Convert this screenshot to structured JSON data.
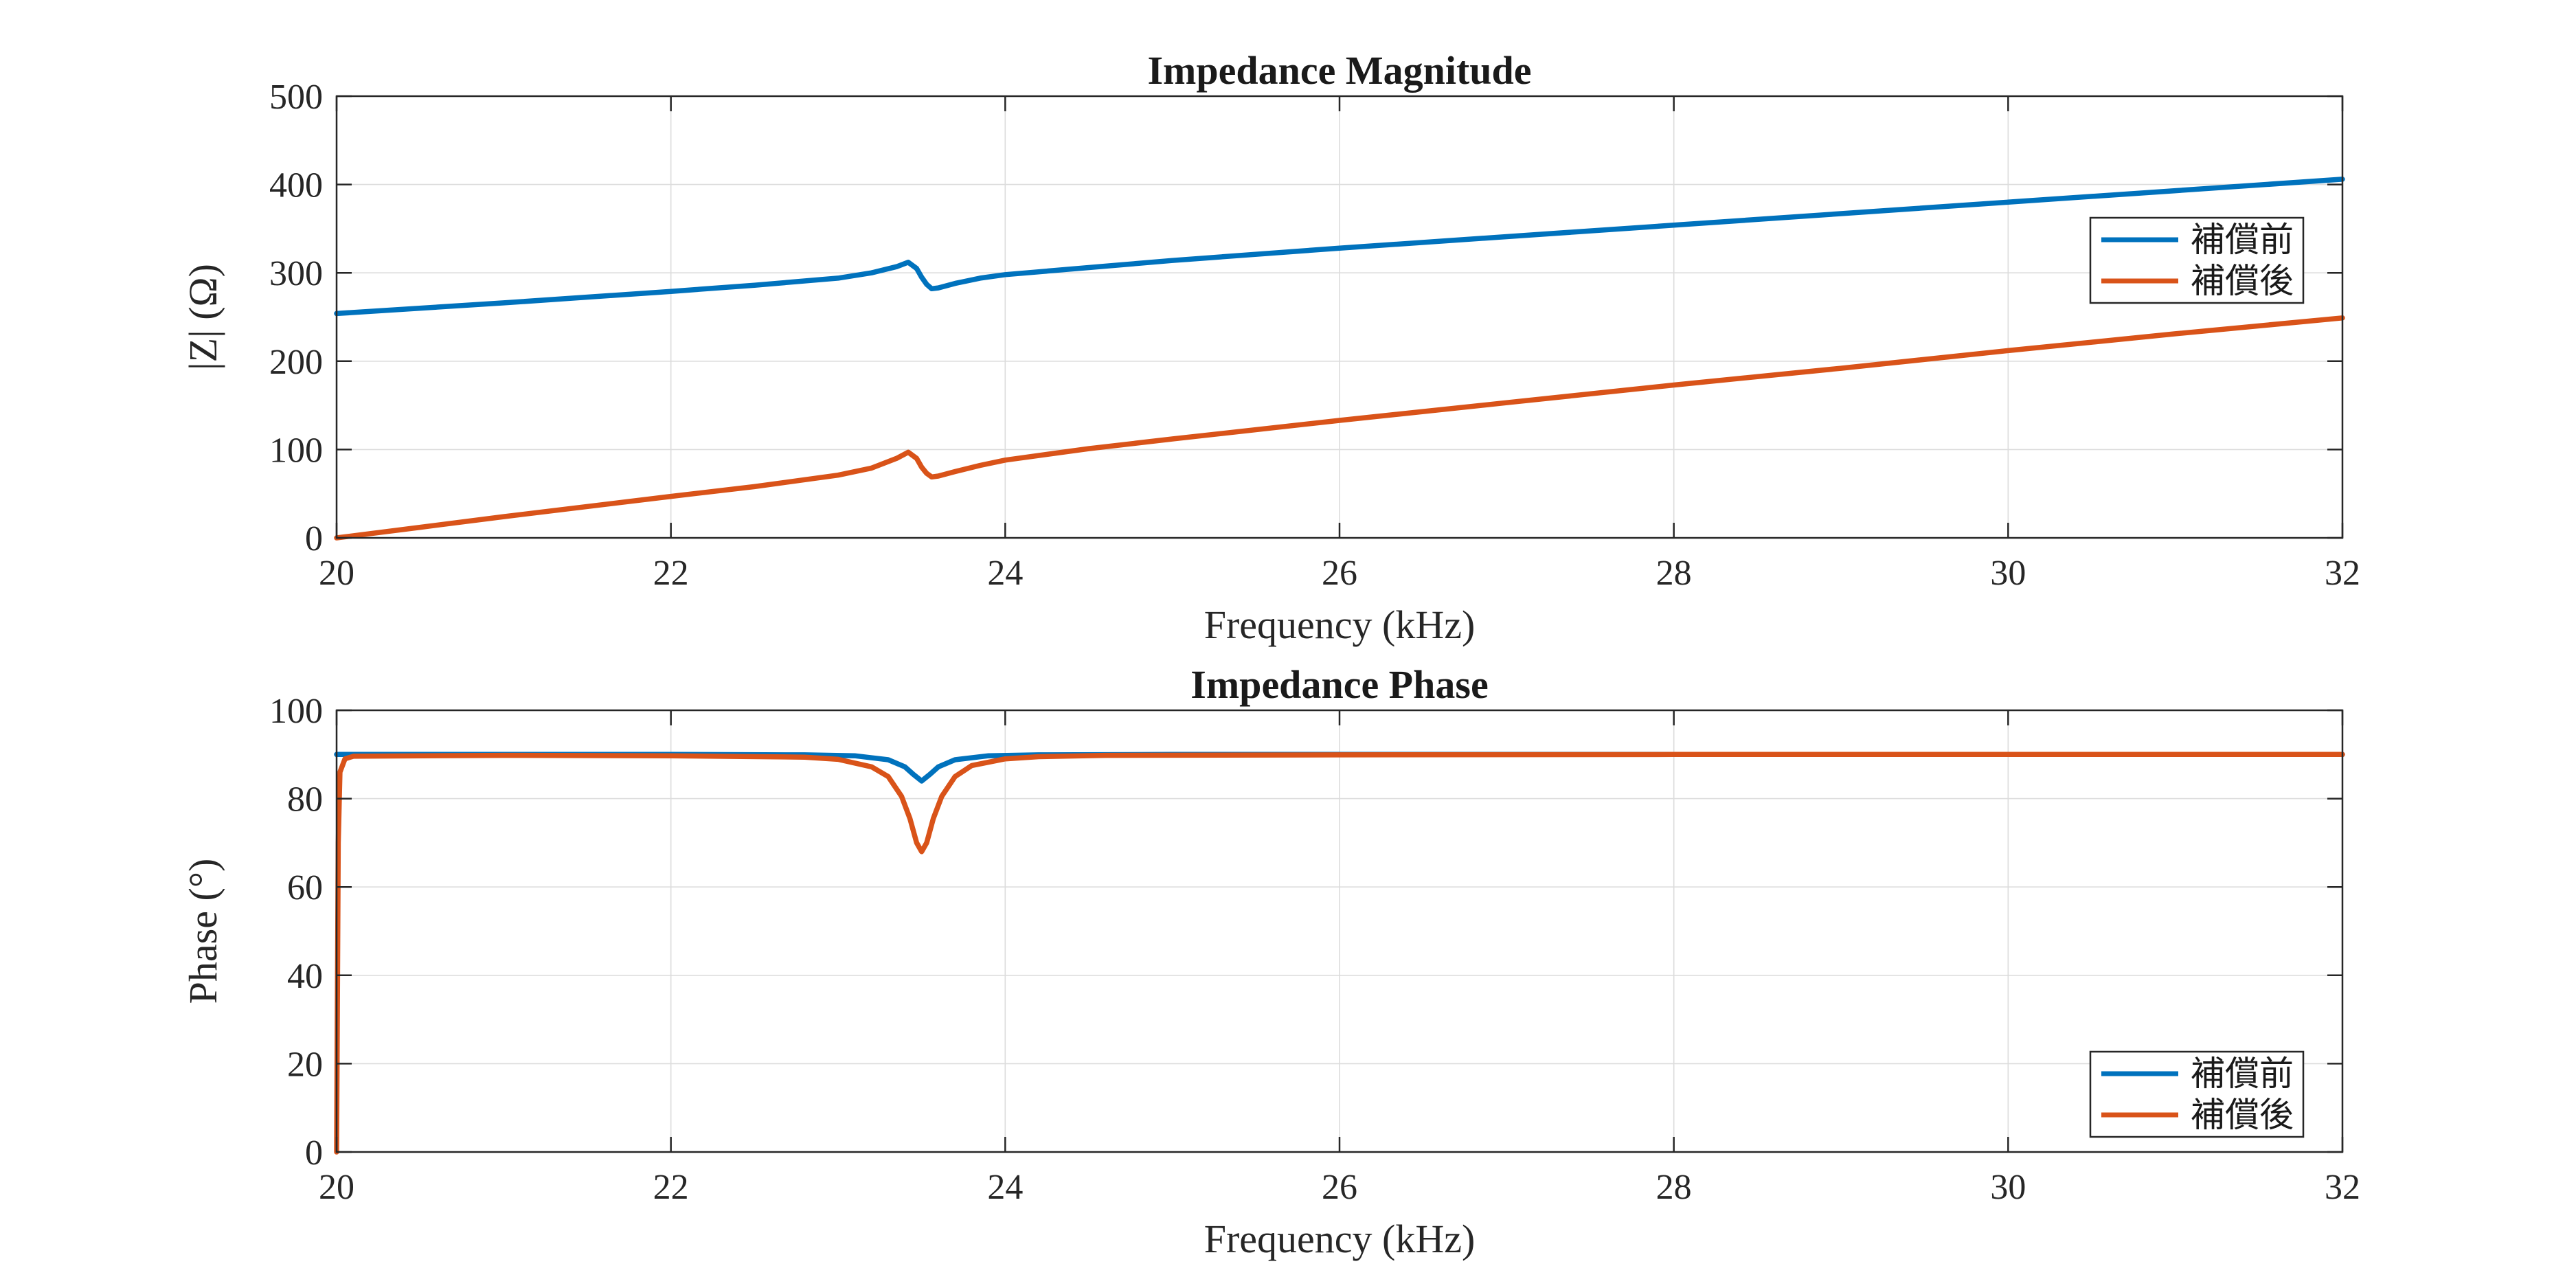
{
  "chart_data": [
    {
      "type": "line",
      "title": "Impedance Magnitude",
      "xlabel": "Frequency (kHz)",
      "ylabel": "|Z| (Ω)",
      "xlim": [
        20,
        32
      ],
      "ylim": [
        0,
        500
      ],
      "xticks": [
        20,
        22,
        24,
        26,
        28,
        30,
        32
      ],
      "yticks": [
        0,
        100,
        200,
        300,
        400,
        500
      ],
      "grid": true,
      "legend_position": "right",
      "series": [
        {
          "name": "補償前",
          "color": "#0072BD",
          "x": [
            20,
            21,
            22,
            22.5,
            23,
            23.2,
            23.35,
            23.42,
            23.47,
            23.5,
            23.53,
            23.56,
            23.6,
            23.7,
            23.85,
            24,
            24.5,
            25,
            26,
            27,
            28,
            29,
            30,
            31,
            32
          ],
          "y": [
            254,
            266,
            279,
            286,
            294,
            300,
            307,
            312,
            305,
            295,
            287,
            282,
            283,
            288,
            294,
            298,
            306,
            314,
            328,
            341,
            354,
            367,
            380,
            393,
            406
          ]
        },
        {
          "name": "補償後",
          "color": "#D95319",
          "x": [
            20,
            20.5,
            21,
            22,
            22.5,
            23,
            23.2,
            23.35,
            23.42,
            23.47,
            23.5,
            23.53,
            23.56,
            23.6,
            23.7,
            23.85,
            24,
            24.5,
            25,
            26,
            27,
            28,
            29,
            30,
            31,
            32
          ],
          "y": [
            0,
            12,
            24,
            47,
            58,
            71,
            79,
            90,
            97,
            90,
            80,
            73,
            69,
            70,
            75,
            82,
            88,
            101,
            112,
            133,
            153,
            173,
            192,
            212,
            231,
            249
          ]
        }
      ]
    },
    {
      "type": "line",
      "title": "Impedance Phase",
      "xlabel": "Frequency (kHz)",
      "ylabel": "Phase (°)",
      "xlim": [
        20,
        32
      ],
      "ylim": [
        0,
        100
      ],
      "xticks": [
        20,
        22,
        24,
        26,
        28,
        30,
        32
      ],
      "yticks": [
        0,
        20,
        40,
        60,
        80,
        100
      ],
      "grid": true,
      "legend_position": "bottom-right",
      "series": [
        {
          "name": "補償前",
          "color": "#0072BD",
          "x": [
            20,
            21,
            22,
            22.8,
            23.1,
            23.3,
            23.4,
            23.45,
            23.5,
            23.55,
            23.6,
            23.7,
            23.9,
            24.2,
            25,
            26,
            28,
            30,
            32
          ],
          "y": [
            90,
            90,
            90,
            89.9,
            89.7,
            88.8,
            87.2,
            85.5,
            84,
            85.5,
            87.2,
            88.8,
            89.7,
            89.9,
            90,
            90,
            90,
            90,
            90
          ]
        },
        {
          "name": "補償後",
          "color": "#D95319",
          "x": [
            20,
            20.01,
            20.02,
            20.05,
            20.1,
            21,
            22,
            22.8,
            23.0,
            23.2,
            23.3,
            23.38,
            23.43,
            23.47,
            23.5,
            23.53,
            23.57,
            23.62,
            23.7,
            23.8,
            24.0,
            24.2,
            24.6,
            26,
            28,
            30,
            32
          ],
          "y": [
            0,
            70,
            86,
            89,
            89.6,
            89.8,
            89.7,
            89.4,
            88.9,
            87.2,
            85,
            80.5,
            75.5,
            70,
            68,
            70,
            75.5,
            80.5,
            85,
            87.5,
            89,
            89.5,
            89.8,
            89.9,
            90,
            90,
            90
          ]
        }
      ]
    }
  ]
}
